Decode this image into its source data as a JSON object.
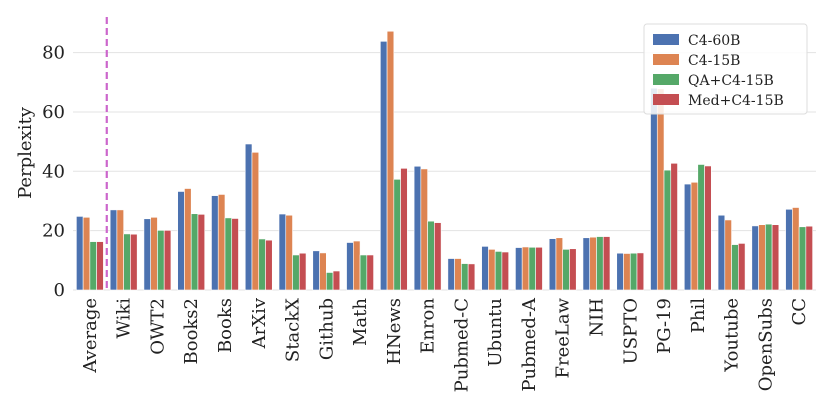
{
  "chart_data": {
    "type": "bar",
    "title": "",
    "xlabel": "",
    "ylabel": "Perplexity",
    "ylim": [
      0,
      92
    ],
    "yticks": [
      0,
      20,
      40,
      60,
      80
    ],
    "grid": true,
    "legend_position": "top-right",
    "reference_line": {
      "category": "Average",
      "style": "dashed",
      "color": "#cc66cc"
    },
    "categories": [
      "Average",
      "Wiki",
      "OWT2",
      "Books2",
      "Books",
      "ArXiv",
      "StackX",
      "Github",
      "Math",
      "HNews",
      "Enron",
      "Pubmed-C",
      "Ubuntu",
      "Pubmed-A",
      "FreeLaw",
      "NIH",
      "USPTO",
      "PG-19",
      "Phil",
      "Youtube",
      "OpenSubs",
      "CC"
    ],
    "series": [
      {
        "name": "C4-60B",
        "color": "#4c72b0",
        "values": [
          24.8,
          27.0,
          24.0,
          33.2,
          31.8,
          49.2,
          25.6,
          13.2,
          16.0,
          83.8,
          41.7,
          10.6,
          14.7,
          14.3,
          17.3,
          17.6,
          12.4,
          68.0,
          35.7,
          25.2,
          21.6,
          27.2
        ]
      },
      {
        "name": "C4-15B",
        "color": "#dd8452",
        "values": [
          24.5,
          27.0,
          24.5,
          34.2,
          32.2,
          46.4,
          25.2,
          12.5,
          16.5,
          87.2,
          40.8,
          10.6,
          13.7,
          14.5,
          17.6,
          17.8,
          12.3,
          67.8,
          36.3,
          23.6,
          22.0,
          27.8
        ]
      },
      {
        "name": "QA+C4-15B",
        "color": "#55a868",
        "values": [
          16.3,
          18.9,
          20.1,
          25.7,
          24.3,
          17.2,
          11.8,
          5.9,
          11.8,
          37.3,
          23.2,
          8.9,
          13.0,
          14.4,
          13.7,
          18.0,
          12.4,
          40.4,
          42.3,
          15.3,
          22.2,
          21.3
        ]
      },
      {
        "name": "Med+C4-15B",
        "color": "#c44e52",
        "values": [
          16.3,
          18.8,
          20.1,
          25.5,
          24.1,
          16.8,
          12.4,
          6.4,
          11.8,
          41.0,
          22.7,
          8.8,
          12.8,
          14.4,
          13.9,
          18.0,
          12.5,
          42.7,
          41.8,
          15.7,
          22.0,
          21.5
        ]
      }
    ]
  }
}
